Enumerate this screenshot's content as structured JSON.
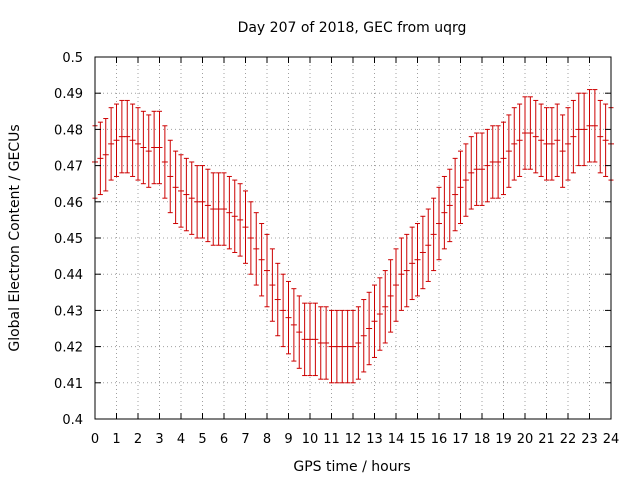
{
  "chart_data": {
    "type": "line",
    "title": "Day 207 of 2018, GEC from uqrg",
    "xlabel": "GPS time / hours",
    "ylabel": "Global Electron Content / GECUs",
    "xlim": [
      0,
      24
    ],
    "ylim": [
      0.4,
      0.5
    ],
    "xticks": [
      0,
      1,
      2,
      3,
      4,
      5,
      6,
      7,
      8,
      9,
      10,
      11,
      12,
      13,
      14,
      15,
      16,
      17,
      18,
      19,
      20,
      21,
      22,
      23,
      24
    ],
    "xtick_labels": [
      "0",
      "1",
      "2",
      "3",
      "4",
      "5",
      "6",
      "7",
      "8",
      "9",
      "10",
      "11",
      "12",
      "13",
      "14",
      "15",
      "16",
      "17",
      "18",
      "19",
      "20",
      "21",
      "22",
      "23",
      "24"
    ],
    "yticks": [
      0.4,
      0.41,
      0.42,
      0.43,
      0.44,
      0.45,
      0.46,
      0.47,
      0.48,
      0.49,
      0.5
    ],
    "ytick_labels": [
      "0.4",
      "0.41",
      "0.42",
      "0.43",
      "0.44",
      "0.45",
      "0.46",
      "0.47",
      "0.48",
      "0.49",
      "0.5"
    ],
    "grid": true,
    "series_color": "#cc0000",
    "series": [
      {
        "style": "errorbars",
        "x": [
          0,
          0.25,
          0.5,
          0.75,
          1,
          1.25,
          1.5,
          1.75,
          2,
          2.25,
          2.5,
          2.75,
          3,
          3.25,
          3.5,
          3.75,
          4,
          4.25,
          4.5,
          4.75,
          5,
          5.25,
          5.5,
          5.75,
          6,
          6.25,
          6.5,
          6.75,
          7,
          7.25,
          7.5,
          7.75,
          8,
          8.25,
          8.5,
          8.75,
          9,
          9.25,
          9.5,
          9.75,
          10,
          10.25,
          10.5,
          10.75,
          11,
          11.25,
          11.5,
          11.75,
          12,
          12.25,
          12.5,
          12.75,
          13,
          13.25,
          13.5,
          13.75,
          14,
          14.25,
          14.5,
          14.75,
          15,
          15.25,
          15.5,
          15.75,
          16,
          16.25,
          16.5,
          16.75,
          17,
          17.25,
          17.5,
          17.75,
          18,
          18.25,
          18.5,
          18.75,
          19,
          19.25,
          19.5,
          19.75,
          20,
          20.25,
          20.5,
          20.75,
          21,
          21.25,
          21.5,
          21.75,
          22,
          22.25,
          22.5,
          22.75,
          23,
          23.25,
          23.5,
          23.75,
          24
        ],
        "y": [
          0.471,
          0.472,
          0.473,
          0.476,
          0.477,
          0.478,
          0.478,
          0.477,
          0.476,
          0.475,
          0.474,
          0.475,
          0.475,
          0.471,
          0.467,
          0.464,
          0.463,
          0.462,
          0.461,
          0.46,
          0.46,
          0.459,
          0.458,
          0.458,
          0.458,
          0.457,
          0.456,
          0.455,
          0.453,
          0.45,
          0.447,
          0.444,
          0.441,
          0.437,
          0.433,
          0.43,
          0.428,
          0.426,
          0.424,
          0.422,
          0.422,
          0.422,
          0.421,
          0.421,
          0.42,
          0.42,
          0.42,
          0.42,
          0.42,
          0.421,
          0.423,
          0.425,
          0.427,
          0.429,
          0.431,
          0.434,
          0.437,
          0.44,
          0.441,
          0.443,
          0.444,
          0.446,
          0.448,
          0.451,
          0.454,
          0.457,
          0.459,
          0.462,
          0.464,
          0.466,
          0.468,
          0.469,
          0.469,
          0.47,
          0.471,
          0.471,
          0.472,
          0.474,
          0.476,
          0.477,
          0.479,
          0.479,
          0.478,
          0.477,
          0.476,
          0.476,
          0.477,
          0.474,
          0.476,
          0.478,
          0.48,
          0.48,
          0.481,
          0.481,
          0.478,
          0.477,
          0.476
        ],
        "error": [
          0.01,
          0.01,
          0.01,
          0.01,
          0.01,
          0.01,
          0.01,
          0.01,
          0.01,
          0.01,
          0.01,
          0.01,
          0.01,
          0.01,
          0.01,
          0.01,
          0.01,
          0.01,
          0.01,
          0.01,
          0.01,
          0.01,
          0.01,
          0.01,
          0.01,
          0.01,
          0.01,
          0.01,
          0.01,
          0.01,
          0.01,
          0.01,
          0.01,
          0.01,
          0.01,
          0.01,
          0.01,
          0.01,
          0.01,
          0.01,
          0.01,
          0.01,
          0.01,
          0.01,
          0.01,
          0.01,
          0.01,
          0.01,
          0.01,
          0.01,
          0.01,
          0.01,
          0.01,
          0.01,
          0.01,
          0.01,
          0.01,
          0.01,
          0.01,
          0.01,
          0.01,
          0.01,
          0.01,
          0.01,
          0.01,
          0.01,
          0.01,
          0.01,
          0.01,
          0.01,
          0.01,
          0.01,
          0.01,
          0.01,
          0.01,
          0.01,
          0.01,
          0.01,
          0.01,
          0.01,
          0.01,
          0.01,
          0.01,
          0.01,
          0.01,
          0.01,
          0.01,
          0.01,
          0.01,
          0.01,
          0.01,
          0.01,
          0.01,
          0.01,
          0.01,
          0.01,
          0.01
        ]
      }
    ]
  }
}
